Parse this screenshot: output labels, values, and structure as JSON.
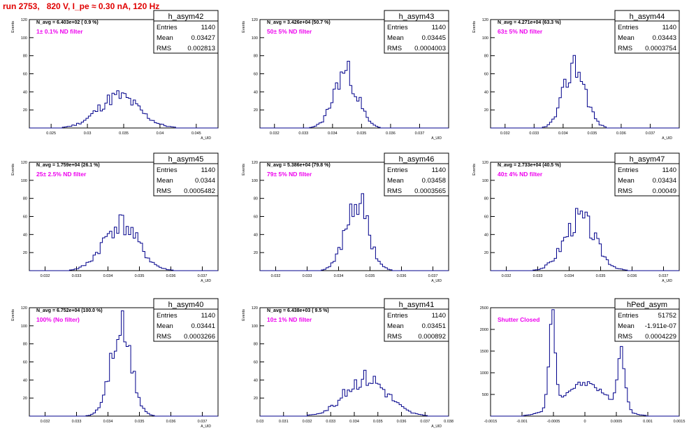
{
  "header": {
    "run_title": "run 2753,   820 V, I_pe ≈ 0.30 nA, 120 Hz"
  },
  "colors": {
    "hist": "#00008b",
    "annotation": "#ee00ee",
    "title": "#e00000"
  },
  "chart_data": [
    {
      "type": "histogram",
      "name": "h_asym42",
      "stats": {
        "entries_label": "Entries",
        "mean_label": "Mean",
        "rms_label": "RMS",
        "entries": "1140",
        "mean": "0.03427",
        "rms": "0.002813"
      },
      "navg": "N_avg = 6.403e+02 ( 0.9 %)",
      "filter": "1± 0.1% ND filter",
      "ylabel": "Events",
      "xlabel": "A_UID",
      "xlim": [
        0.022,
        0.048
      ],
      "ylim": [
        0,
        120
      ],
      "xticks": [
        "0.025",
        "0.03",
        "0.035",
        "0.04",
        "0.045"
      ],
      "yticks": [
        "20",
        "40",
        "60",
        "80",
        "100",
        "120"
      ],
      "gauss": {
        "mu": 0.0343,
        "sigma": 0.0028,
        "peak": 35,
        "seed": 11
      }
    },
    {
      "type": "histogram",
      "name": "h_asym43",
      "stats": {
        "entries_label": "Entries",
        "mean_label": "Mean",
        "rms_label": "RMS",
        "entries": "1140",
        "mean": "0.03445",
        "rms": "0.0004003"
      },
      "navg": "N_avg = 3.426e+04 (50.7 %)",
      "filter": "50± 5% ND filter",
      "ylabel": "Events",
      "xlabel": "A_UID",
      "xlim": [
        0.0315,
        0.038
      ],
      "ylim": [
        0,
        120
      ],
      "xticks": [
        "0.032",
        "0.033",
        "0.034",
        "0.035",
        "0.036",
        "0.037"
      ],
      "yticks": [
        "20",
        "40",
        "60",
        "80",
        "100",
        "120"
      ],
      "gauss": {
        "mu": 0.03445,
        "sigma": 0.0004,
        "peak": 62,
        "seed": 23
      }
    },
    {
      "type": "histogram",
      "name": "h_asym44",
      "stats": {
        "entries_label": "Entries",
        "mean_label": "Mean",
        "rms_label": "RMS",
        "entries": "1140",
        "mean": "0.03443",
        "rms": "0.0003754"
      },
      "navg": "N_avg = 4.271e+04 (63.3 %)",
      "filter": "63± 5% ND filter",
      "ylabel": "Events",
      "xlabel": "A_UID",
      "xlim": [
        0.0315,
        0.038
      ],
      "ylim": [
        0,
        120
      ],
      "xticks": [
        "0.032",
        "0.033",
        "0.034",
        "0.035",
        "0.036",
        "0.037"
      ],
      "yticks": [
        "20",
        "40",
        "60",
        "80",
        "100",
        "120"
      ],
      "gauss": {
        "mu": 0.0344,
        "sigma": 0.00037,
        "peak": 70,
        "seed": 37
      }
    },
    {
      "type": "histogram",
      "name": "h_asym45",
      "stats": {
        "entries_label": "Entries",
        "mean_label": "Mean",
        "rms_label": "RMS",
        "entries": "1140",
        "mean": "0.0344",
        "rms": "0.0005482"
      },
      "navg": "N_avg = 1.759e+04 (26.1 %)",
      "filter": "25± 2.5% ND filter",
      "ylabel": "Events",
      "xlabel": "A_UID",
      "xlim": [
        0.0315,
        0.0375
      ],
      "ylim": [
        0,
        120
      ],
      "xticks": [
        "0.032",
        "0.033",
        "0.034",
        "0.035",
        "0.036",
        "0.037"
      ],
      "yticks": [
        "20",
        "40",
        "60",
        "80",
        "100",
        "120"
      ],
      "gauss": {
        "mu": 0.0344,
        "sigma": 0.00055,
        "peak": 52,
        "seed": 41
      }
    },
    {
      "type": "histogram",
      "name": "h_asym46",
      "stats": {
        "entries_label": "Entries",
        "mean_label": "Mean",
        "rms_label": "RMS",
        "entries": "1140",
        "mean": "0.03458",
        "rms": "0.0003565"
      },
      "navg": "N_avg = 5.386e+04 (79.8 %)",
      "filter": "79± 5% ND filter",
      "ylabel": "Events",
      "xlabel": "A_UID",
      "xlim": [
        0.0315,
        0.0375
      ],
      "ylim": [
        0,
        120
      ],
      "xticks": [
        "0.032",
        "0.033",
        "0.034",
        "0.035",
        "0.036",
        "0.037"
      ],
      "yticks": [
        "20",
        "40",
        "60",
        "80",
        "100",
        "120"
      ],
      "gauss": {
        "mu": 0.03458,
        "sigma": 0.00036,
        "peak": 78,
        "seed": 53
      }
    },
    {
      "type": "histogram",
      "name": "h_asym47",
      "stats": {
        "entries_label": "Entries",
        "mean_label": "Mean",
        "rms_label": "RMS",
        "entries": "1140",
        "mean": "0.03434",
        "rms": "0.00049"
      },
      "navg": "N_avg = 2.733e+04 (40.5 %)",
      "filter": "40± 4% ND filter",
      "ylabel": "Events",
      "xlabel": "A_UID",
      "xlim": [
        0.0315,
        0.0375
      ],
      "ylim": [
        0,
        120
      ],
      "xticks": [
        "0.032",
        "0.033",
        "0.034",
        "0.035",
        "0.036",
        "0.037"
      ],
      "yticks": [
        "20",
        "40",
        "60",
        "80",
        "100",
        "120"
      ],
      "gauss": {
        "mu": 0.03434,
        "sigma": 0.00049,
        "peak": 58,
        "seed": 67
      }
    },
    {
      "type": "histogram",
      "name": "h_asym40",
      "stats": {
        "entries_label": "Entries",
        "mean_label": "Mean",
        "rms_label": "RMS",
        "entries": "1140",
        "mean": "0.03441",
        "rms": "0.0003266"
      },
      "navg": "N_avg = 6.752e+04 (100.0 %)",
      "filter": "100% (No filter)",
      "ylabel": "Events",
      "xlabel": "A_UID",
      "xlim": [
        0.0315,
        0.0375
      ],
      "ylim": [
        0,
        120
      ],
      "xticks": [
        "0.032",
        "0.033",
        "0.034",
        "0.035",
        "0.036",
        "0.037"
      ],
      "yticks": [
        "20",
        "40",
        "60",
        "80",
        "100",
        "120"
      ],
      "gauss": {
        "mu": 0.03441,
        "sigma": 0.00033,
        "peak": 95,
        "seed": 71
      }
    },
    {
      "type": "histogram",
      "name": "h_asym41",
      "stats": {
        "entries_label": "Entries",
        "mean_label": "Mean",
        "rms_label": "RMS",
        "entries": "1140",
        "mean": "0.03451",
        "rms": "0.000892"
      },
      "navg": "N_avg = 6.438e+03 ( 9.5 %)",
      "filter": "10± 1% ND filter",
      "ylabel": "Events",
      "xlabel": "A_UID",
      "xlim": [
        0.03,
        0.038
      ],
      "ylim": [
        0,
        120
      ],
      "xticks": [
        "0.03",
        "0.031",
        "0.032",
        "0.033",
        "0.034",
        "0.035",
        "0.036",
        "0.037",
        "0.038"
      ],
      "yticks": [
        "20",
        "40",
        "60",
        "80",
        "100",
        "120"
      ],
      "gauss": {
        "mu": 0.0345,
        "sigma": 0.00089,
        "peak": 42,
        "seed": 83
      }
    },
    {
      "type": "histogram",
      "name": "hPed_asym",
      "stats": {
        "entries_label": "Entries",
        "mean_label": "Mean",
        "rms_label": "RMS",
        "entries": "51752",
        "mean": "-1.911e-07",
        "rms": "0.0004229"
      },
      "navg": "",
      "filter": "Shutter Closed",
      "ylabel": "",
      "xlabel": "",
      "xlim": [
        -0.0015,
        0.0015
      ],
      "ylim": [
        0,
        2500
      ],
      "xticks": [
        "-0.0015",
        "-0.001",
        "-0.0005",
        "0",
        "0.0005",
        "0.001",
        "0.0015"
      ],
      "yticks": [
        "500",
        "1000",
        "1500",
        "2000",
        "2500"
      ],
      "ped": {
        "peaks": [
          {
            "mu": -0.00052,
            "sigma": 5e-05,
            "amp": 2200
          },
          {
            "mu": 0.00058,
            "sigma": 6e-05,
            "amp": 1300
          },
          {
            "mu": 0.0,
            "sigma": 0.00035,
            "amp": 750
          }
        ],
        "seed": 97
      }
    }
  ]
}
